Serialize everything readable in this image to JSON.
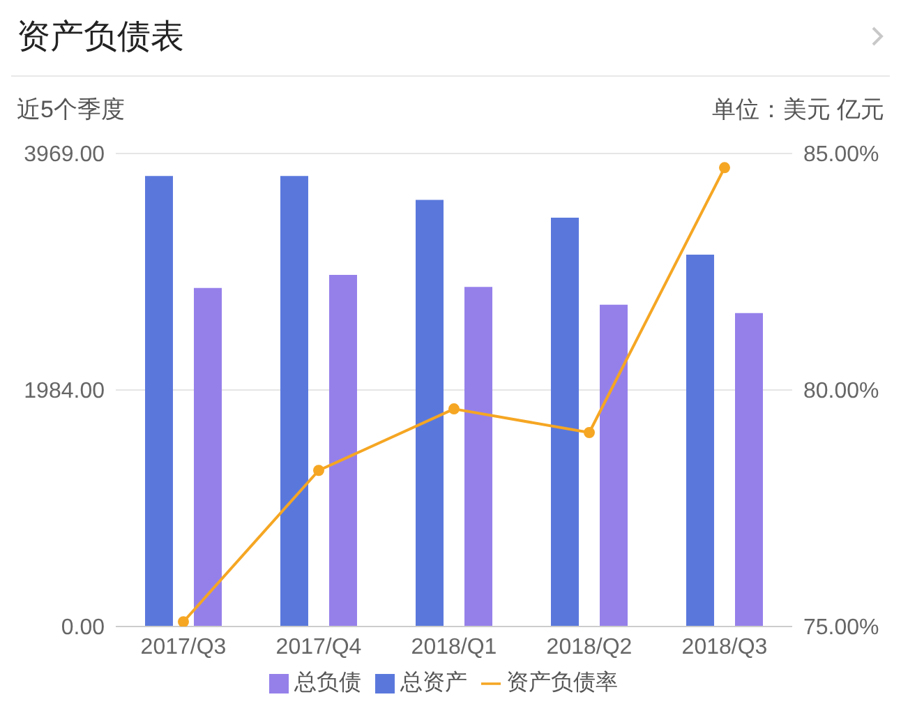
{
  "chart_data": {
    "type": "bar",
    "title": "资产负债表",
    "subtitle": "近5个季度",
    "annotations": [
      "单位：美元 亿元"
    ],
    "categories": [
      "2017/Q3",
      "2017/Q4",
      "2018/Q1",
      "2018/Q2",
      "2018/Q3"
    ],
    "series": [
      {
        "name": "总资产",
        "color": "#5a78dc",
        "values": [
          3780,
          3780,
          3580,
          3430,
          3120
        ]
      },
      {
        "name": "总负债",
        "color": "#9580ea",
        "values": [
          2840,
          2950,
          2850,
          2700,
          2630
        ]
      },
      {
        "name": "资产负债率",
        "type": "line",
        "axis": "y2",
        "color": "#f5a623",
        "values": [
          75.1,
          78.3,
          79.6,
          79.1,
          84.7
        ]
      }
    ],
    "ylim": [
      0,
      3969
    ],
    "yticks": [
      {
        "value": 0,
        "label": "0.00"
      },
      {
        "value": 1984,
        "label": "1984.00"
      },
      {
        "value": 3969,
        "label": "3969.00"
      }
    ],
    "y2lim": [
      75,
      85
    ],
    "y2ticks": [
      {
        "value": 75,
        "label": "75.00%"
      },
      {
        "value": 80,
        "label": "80.00%"
      },
      {
        "value": 85,
        "label": "85.00%"
      }
    ],
    "grid": "y",
    "legend": "bottom",
    "marker": "circle"
  }
}
